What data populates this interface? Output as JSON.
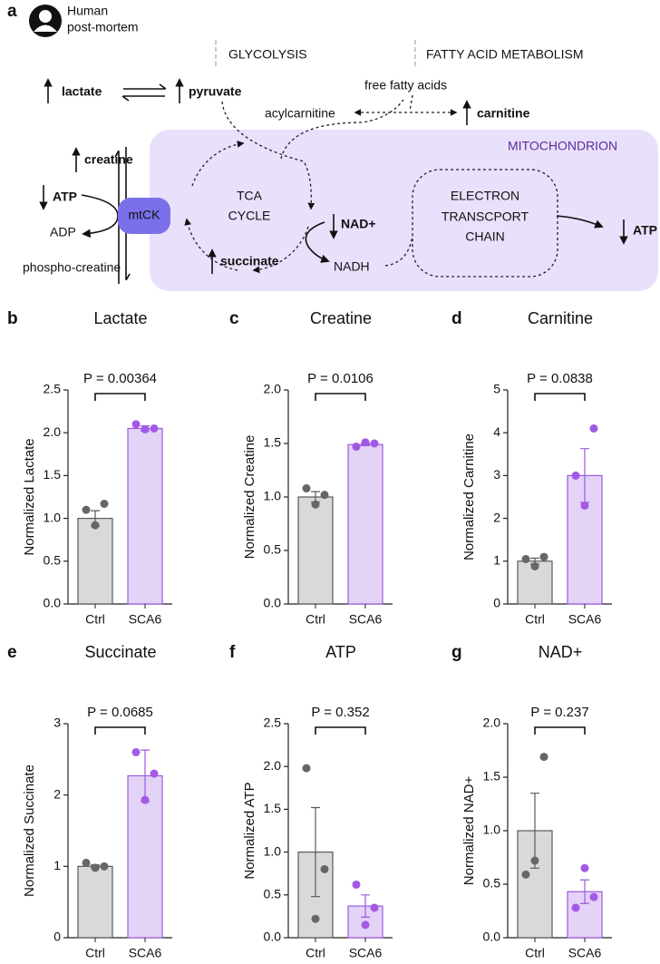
{
  "diagram": {
    "panel_label": "a",
    "source": [
      "Human",
      "post-mortem"
    ],
    "glycolysis": "GLYCOLYSIS",
    "fatty_acid": "FATTY ACID METABOLISM",
    "lactate": "lactate",
    "pyruvate": "pyruvate",
    "free_fatty_acids": "free fatty acids",
    "acylcarnitine": "acylcarnitine",
    "carnitine": "carnitine",
    "compartment": "MITOCHONDRION",
    "creatine": "creatine",
    "atp_left": "ATP",
    "adp": "ADP",
    "phosphocreatine": "phospho-creatine",
    "enzyme": "mtCK",
    "tca": [
      "TCA",
      "CYCLE"
    ],
    "succinate": "succinate",
    "nad": "NAD+",
    "nadh": "NADH",
    "etc": [
      "ELECTRON",
      "TRANSCPORT",
      "CHAIN"
    ],
    "atp_right": "ATP"
  },
  "chart_data": [
    {
      "type": "bar",
      "panel": "b",
      "title": "Lactate",
      "ylabel": "Normalized Lactate",
      "annotation": "P = 0.00364",
      "categories": [
        "Ctrl",
        "SCA6"
      ],
      "values": [
        1.0,
        2.05
      ],
      "errors": [
        0.09,
        0.03
      ],
      "points": [
        [
          1.1,
          1.17,
          0.92
        ],
        [
          2.1,
          2.05,
          2.04
        ]
      ],
      "colors": [
        "#d9d9d9",
        "#e3d3f7"
      ],
      "edge_colors": [
        "#5a5a5a",
        "#9b59e0"
      ],
      "point_colors": [
        "#666666",
        "#a259e6"
      ],
      "ylim": [
        0,
        2.5
      ],
      "yticks": [
        {
          "value": 0,
          "label": "0.0"
        },
        0.5,
        {
          "value": 1,
          "label": "1.0"
        },
        1.5,
        {
          "value": 2,
          "label": "2.0"
        },
        2.5
      ]
    },
    {
      "type": "bar",
      "panel": "c",
      "title": "Creatine",
      "ylabel": "Normalized Creatine",
      "annotation": "P = 0.0106",
      "categories": [
        "Ctrl",
        "SCA6"
      ],
      "values": [
        1.0,
        1.49
      ],
      "errors": [
        0.05,
        0.01
      ],
      "points": [
        [
          1.08,
          1.02,
          0.93
        ],
        [
          1.47,
          1.5,
          1.51
        ]
      ],
      "colors": [
        "#d9d9d9",
        "#e3d3f7"
      ],
      "edge_colors": [
        "#5a5a5a",
        "#9b59e0"
      ],
      "point_colors": [
        "#666666",
        "#a259e6"
      ],
      "ylim": [
        0,
        2.0
      ],
      "yticks": [
        {
          "value": 0,
          "label": "0.0"
        },
        0.5,
        {
          "value": 1,
          "label": "1.0"
        },
        1.5,
        {
          "value": 2,
          "label": "2.0"
        }
      ]
    },
    {
      "type": "bar",
      "panel": "d",
      "title": "Carnitine",
      "ylabel": "Normalized Carnitine",
      "annotation": "P = 0.0838",
      "categories": [
        "Ctrl",
        "SCA6"
      ],
      "values": [
        1.0,
        3.0
      ],
      "errors": [
        0.07,
        0.63
      ],
      "points": [
        [
          1.05,
          1.1,
          0.88
        ],
        [
          3.0,
          4.1,
          2.3
        ]
      ],
      "colors": [
        "#d9d9d9",
        "#e3d3f7"
      ],
      "edge_colors": [
        "#5a5a5a",
        "#9b59e0"
      ],
      "point_colors": [
        "#666666",
        "#a259e6"
      ],
      "ylim": [
        0,
        5
      ],
      "yticks": [
        0,
        1,
        2,
        3,
        4,
        5
      ]
    },
    {
      "type": "bar",
      "panel": "e",
      "title": "Succinate",
      "ylabel": "Normalized Succinate",
      "annotation": "P = 0.0685",
      "categories": [
        "Ctrl",
        "SCA6"
      ],
      "values": [
        1.0,
        2.27
      ],
      "errors": [
        0.02,
        0.36
      ],
      "points": [
        [
          1.05,
          1.0,
          0.98
        ],
        [
          2.6,
          2.3,
          1.93
        ]
      ],
      "colors": [
        "#d9d9d9",
        "#e3d3f7"
      ],
      "edge_colors": [
        "#5a5a5a",
        "#9b59e0"
      ],
      "point_colors": [
        "#666666",
        "#a259e6"
      ],
      "ylim": [
        0,
        3
      ],
      "yticks": [
        0,
        1,
        2,
        3
      ]
    },
    {
      "type": "bar",
      "panel": "f",
      "title": "ATP",
      "ylabel": "Normalized ATP",
      "annotation": "P = 0.352",
      "categories": [
        "Ctrl",
        "SCA6"
      ],
      "values": [
        1.0,
        0.37
      ],
      "errors": [
        0.52,
        0.13
      ],
      "points": [
        [
          1.98,
          0.8,
          0.22
        ],
        [
          0.62,
          0.35,
          0.15
        ]
      ],
      "colors": [
        "#d9d9d9",
        "#e3d3f7"
      ],
      "edge_colors": [
        "#5a5a5a",
        "#9b59e0"
      ],
      "point_colors": [
        "#666666",
        "#a259e6"
      ],
      "ylim": [
        0,
        2.5
      ],
      "yticks": [
        {
          "value": 0,
          "label": "0.0"
        },
        0.5,
        {
          "value": 1,
          "label": "1.0"
        },
        1.5,
        {
          "value": 2,
          "label": "2.0"
        },
        2.5
      ]
    },
    {
      "type": "bar",
      "panel": "g",
      "title": "NAD+",
      "ylabel": "Normalized NAD+",
      "annotation": "P = 0.237",
      "categories": [
        "Ctrl",
        "SCA6"
      ],
      "values": [
        1.0,
        0.43
      ],
      "errors": [
        0.35,
        0.11
      ],
      "points": [
        [
          0.59,
          1.69,
          0.72
        ],
        [
          0.28,
          0.38,
          0.65
        ]
      ],
      "colors": [
        "#d9d9d9",
        "#e3d3f7"
      ],
      "edge_colors": [
        "#5a5a5a",
        "#9b59e0"
      ],
      "point_colors": [
        "#666666",
        "#a259e6"
      ],
      "ylim": [
        0,
        2.0
      ],
      "yticks": [
        {
          "value": 0,
          "label": "0.0"
        },
        0.5,
        {
          "value": 1,
          "label": "1.0"
        },
        1.5,
        {
          "value": 2,
          "label": "2.0"
        }
      ]
    }
  ]
}
